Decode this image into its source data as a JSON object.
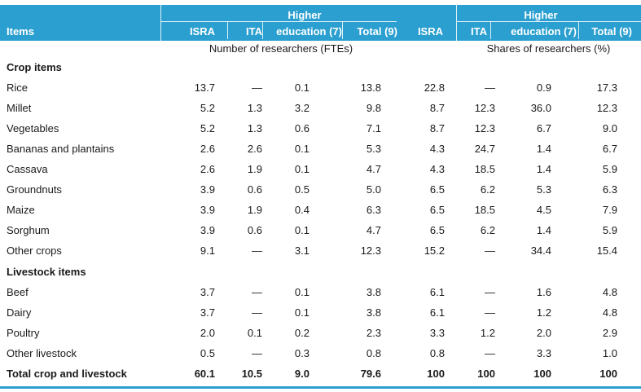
{
  "header": {
    "items": "Items",
    "isra": "ISRA",
    "ita": "ITA",
    "higher_top": "Higher",
    "higher_bottom": "education (7)",
    "total": "Total (9)"
  },
  "subheaders": {
    "left": "Number of researchers (FTEs)",
    "right": "Shares of researchers (%)"
  },
  "sections": {
    "crop": "Crop items",
    "livestock": "Livestock items"
  },
  "rows": [
    {
      "label": "Rice",
      "v": [
        "13.7",
        "—",
        "0.1",
        "13.8",
        "22.8",
        "—",
        "0.9",
        "17.3"
      ]
    },
    {
      "label": "Millet",
      "v": [
        "5.2",
        "1.3",
        "3.2",
        "9.8",
        "8.7",
        "12.3",
        "36.0",
        "12.3"
      ]
    },
    {
      "label": "Vegetables",
      "v": [
        "5.2",
        "1.3",
        "0.6",
        "7.1",
        "8.7",
        "12.3",
        "6.7",
        "9.0"
      ]
    },
    {
      "label": "Bananas and plantains",
      "v": [
        "2.6",
        "2.6",
        "0.1",
        "5.3",
        "4.3",
        "24.7",
        "1.4",
        "6.7"
      ]
    },
    {
      "label": "Cassava",
      "v": [
        "2.6",
        "1.9",
        "0.1",
        "4.7",
        "4.3",
        "18.5",
        "1.4",
        "5.9"
      ]
    },
    {
      "label": "Groundnuts",
      "v": [
        "3.9",
        "0.6",
        "0.5",
        "5.0",
        "6.5",
        "6.2",
        "5.3",
        "6.3"
      ]
    },
    {
      "label": "Maize",
      "v": [
        "3.9",
        "1.9",
        "0.4",
        "6.3",
        "6.5",
        "18.5",
        "4.5",
        "7.9"
      ]
    },
    {
      "label": "Sorghum",
      "v": [
        "3.9",
        "0.6",
        "0.1",
        "4.7",
        "6.5",
        "6.2",
        "1.4",
        "5.9"
      ]
    },
    {
      "label": "Other crops",
      "v": [
        "9.1",
        "—",
        "3.1",
        "12.3",
        "15.2",
        "—",
        "34.4",
        "15.4"
      ]
    },
    {
      "label": "Beef",
      "v": [
        "3.7",
        "—",
        "0.1",
        "3.8",
        "6.1",
        "—",
        "1.6",
        "4.8"
      ]
    },
    {
      "label": "Dairy",
      "v": [
        "3.7",
        "—",
        "0.1",
        "3.8",
        "6.1",
        "—",
        "1.2",
        "4.8"
      ]
    },
    {
      "label": "Poultry",
      "v": [
        "2.0",
        "0.1",
        "0.2",
        "2.3",
        "3.3",
        "1.2",
        "2.0",
        "2.9"
      ]
    },
    {
      "label": "Other livestock",
      "v": [
        "0.5",
        "—",
        "0.3",
        "0.8",
        "0.8",
        "—",
        "3.3",
        "1.0"
      ]
    },
    {
      "label": "Total crop and livestock",
      "v": [
        "60.1",
        "10.5",
        "9.0",
        "79.6",
        "100",
        "100",
        "100",
        "100"
      ],
      "bold": true
    }
  ]
}
